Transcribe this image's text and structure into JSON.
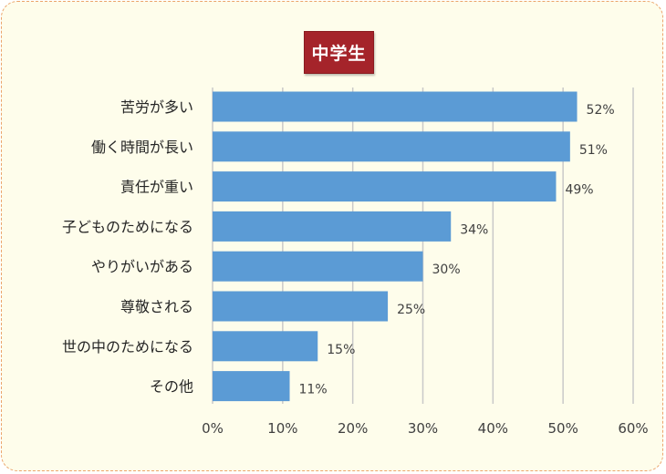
{
  "chart_data": {
    "type": "bar",
    "orientation": "horizontal",
    "title": "中学生",
    "categories": [
      "苦労が多い",
      "働く時間が長い",
      "責任が重い",
      "子どものためになる",
      "やりがいがある",
      "尊敬される",
      "世の中のためになる",
      "その他"
    ],
    "values": [
      52,
      51,
      49,
      34,
      30,
      25,
      15,
      11
    ],
    "value_labels": [
      "52%",
      "51%",
      "49%",
      "34%",
      "30%",
      "25%",
      "15%",
      "11%"
    ],
    "x_ticks": [
      "0%",
      "10%",
      "20%",
      "30%",
      "40%",
      "50%",
      "60%"
    ],
    "xlim": [
      0,
      60
    ],
    "grid": true,
    "bar_color": "#5b9bd5",
    "title_color": "#a5242a"
  }
}
